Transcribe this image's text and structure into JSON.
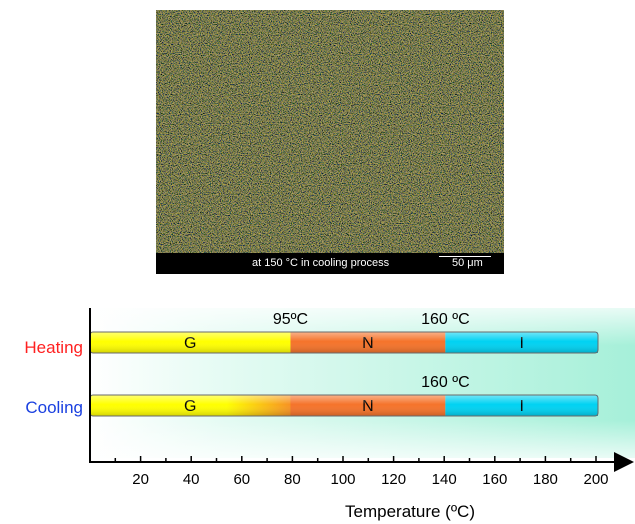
{
  "micrograph": {
    "caption": "at 150  °C in cooling process",
    "scale_label": "50 μm"
  },
  "diagram": {
    "rows": [
      {
        "label": "Heating",
        "label_color": "#ff2020",
        "segments": [
          {
            "phase": "G",
            "from": 0,
            "to": 88,
            "color": "#ffff00"
          },
          {
            "phase": "N",
            "from": 88,
            "to": 156,
            "color": "#f5732a"
          },
          {
            "phase": "I",
            "from": 156,
            "to": 223,
            "color": "#00d2f2"
          }
        ],
        "transitions": [
          {
            "label": "95ºC",
            "at": 88
          },
          {
            "label": "160 ºC",
            "at": 156
          }
        ]
      },
      {
        "label": "Cooling",
        "label_color": "#1a40e0",
        "segments": [
          {
            "phase": "G",
            "from": 0,
            "to": 88,
            "color": "#ffff00"
          },
          {
            "phase": "N",
            "from": 88,
            "to": 156,
            "color": "#f5732a"
          },
          {
            "phase": "I",
            "from": 156,
            "to": 223,
            "color": "#00d2f2"
          }
        ],
        "transitions": [
          {
            "label": "160 ºC",
            "at": 156
          }
        ]
      }
    ],
    "axis": {
      "label": "Temperature (ºC)",
      "ticks": [
        20,
        40,
        60,
        80,
        100,
        120,
        140,
        160,
        180,
        200
      ],
      "min": 0,
      "max": 220
    }
  }
}
